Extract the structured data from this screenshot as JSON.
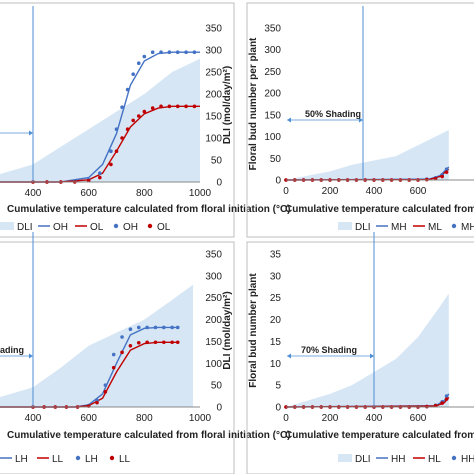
{
  "colors": {
    "dli_fill": "#d6e6f5",
    "high": "#4472c4",
    "low": "#c00000",
    "annotation": "#4f8fd4",
    "frame": "#bfbfbf",
    "axis": "#888888"
  },
  "chart_data": [
    {
      "type": "line",
      "panel": "top-left",
      "xlabel": "Cumulative temperature calculated from floral initiation (°C)",
      "ylabel": "",
      "y2label": "DLI (mol/day/m²)",
      "xticks": [
        "400",
        "600",
        "800",
        "1000"
      ],
      "yticks_left": [],
      "yticks_right": [
        "0",
        "50",
        "100",
        "150",
        "200",
        "250",
        "300",
        "350"
      ],
      "xlim": [
        240,
        1000
      ],
      "ylim": [
        0,
        350
      ],
      "annotation": {
        "text": "",
        "x": 400
      },
      "legend": [
        "DLI",
        "OH",
        "OL",
        "OH",
        "OL"
      ],
      "dli_area": {
        "x": [
          240,
          400,
          500,
          600,
          700,
          800,
          900,
          1000
        ],
        "y": [
          10,
          40,
          80,
          120,
          160,
          200,
          250,
          280
        ]
      },
      "series": [
        {
          "name": "OH",
          "role": "fit-high",
          "x": [
            240,
            500,
            600,
            650,
            700,
            750,
            800,
            850,
            900,
            1000
          ],
          "y": [
            0,
            0,
            10,
            40,
            110,
            220,
            275,
            292,
            295,
            295
          ]
        },
        {
          "name": "OL",
          "role": "fit-low",
          "x": [
            240,
            500,
            600,
            650,
            700,
            750,
            800,
            850,
            900,
            1000
          ],
          "y": [
            0,
            0,
            5,
            20,
            70,
            125,
            155,
            168,
            172,
            172
          ]
        },
        {
          "name": "OH",
          "role": "obs-high",
          "x": [
            400,
            450,
            500,
            550,
            600,
            640,
            680,
            700,
            720,
            740,
            760,
            780,
            800,
            830,
            860,
            890,
            920,
            950,
            980
          ],
          "y": [
            0,
            0,
            0,
            2,
            5,
            20,
            70,
            120,
            170,
            210,
            245,
            270,
            285,
            295,
            295,
            295,
            295,
            295,
            295
          ]
        },
        {
          "name": "OL",
          "role": "obs-low",
          "x": [
            400,
            450,
            500,
            550,
            600,
            640,
            680,
            700,
            720,
            740,
            760,
            780,
            800,
            830,
            860,
            890,
            920,
            950,
            980
          ],
          "y": [
            0,
            0,
            0,
            0,
            3,
            10,
            40,
            70,
            100,
            120,
            140,
            150,
            160,
            168,
            172,
            172,
            172,
            172,
            172
          ]
        }
      ]
    },
    {
      "type": "line",
      "panel": "top-right",
      "xlabel": "Cumulative temperature calculated from fl",
      "ylabel": "Floral bud number  per plant",
      "y2label": "",
      "xticks": [
        "0",
        "200",
        "400",
        "600"
      ],
      "yticks_left": [
        "0",
        "50",
        "100",
        "150",
        "200",
        "250",
        "300",
        "350"
      ],
      "yticks_right": [],
      "xlim": [
        0,
        740
      ],
      "ylim": [
        0,
        350
      ],
      "annotation": {
        "text": "50% Shading",
        "x": 350
      },
      "legend": [
        "DLI",
        "MH",
        "ML",
        "MH"
      ],
      "dli_area": {
        "x": [
          0,
          100,
          200,
          300,
          400,
          500,
          600,
          700,
          740
        ],
        "y": [
          0,
          10,
          20,
          35,
          45,
          55,
          80,
          105,
          115
        ]
      },
      "series": [
        {
          "name": "MH",
          "role": "fit-high",
          "x": [
            0,
            650,
            700,
            740
          ],
          "y": [
            0,
            2,
            10,
            30
          ]
        },
        {
          "name": "ML",
          "role": "fit-low",
          "x": [
            0,
            650,
            700,
            740
          ],
          "y": [
            0,
            1,
            8,
            25
          ]
        },
        {
          "name": "MH",
          "role": "obs-high",
          "x": [
            0,
            40,
            80,
            120,
            160,
            200,
            240,
            280,
            320,
            360,
            400,
            440,
            480,
            520,
            560,
            600,
            640,
            680,
            710,
            730
          ],
          "y": [
            0,
            0,
            0,
            0,
            0,
            0,
            0,
            0,
            0,
            0,
            0,
            0,
            0,
            0,
            0,
            0,
            2,
            5,
            12,
            25
          ]
        },
        {
          "name": "ML",
          "role": "obs-low",
          "x": [
            0,
            40,
            80,
            120,
            160,
            200,
            240,
            280,
            320,
            360,
            400,
            440,
            480,
            520,
            560,
            600,
            640,
            680,
            710,
            730
          ],
          "y": [
            0,
            0,
            0,
            0,
            0,
            0,
            0,
            0,
            0,
            0,
            0,
            0,
            0,
            0,
            0,
            0,
            1,
            3,
            8,
            18
          ]
        }
      ]
    },
    {
      "type": "line",
      "panel": "bottom-left",
      "xlabel": "Cumulative temperature calculated from floral initiation (°C)",
      "ylabel": "",
      "y2label": "DLI (mol/day/m²)",
      "xticks": [
        "400",
        "600",
        "800",
        "1000"
      ],
      "yticks_left": [],
      "yticks_right": [
        "0",
        "50",
        "100",
        "150",
        "200",
        "250",
        "300",
        "350"
      ],
      "xlim": [
        240,
        1000
      ],
      "ylim": [
        0,
        350
      ],
      "annotation": {
        "text": "ading",
        "x": 400
      },
      "legend": [
        "LH",
        "LL",
        "LH",
        "LL"
      ],
      "dli_area": {
        "x": [
          240,
          400,
          500,
          600,
          700,
          800,
          900,
          975
        ],
        "y": [
          15,
          45,
          90,
          140,
          170,
          200,
          245,
          280
        ]
      },
      "series": [
        {
          "name": "LH",
          "role": "fit-high",
          "x": [
            240,
            550,
            600,
            650,
            700,
            750,
            800,
            850,
            920
          ],
          "y": [
            0,
            0,
            5,
            30,
            100,
            165,
            180,
            182,
            182
          ]
        },
        {
          "name": "LL",
          "role": "fit-low",
          "x": [
            240,
            550,
            600,
            650,
            700,
            750,
            800,
            850,
            920
          ],
          "y": [
            0,
            0,
            3,
            20,
            80,
            130,
            145,
            148,
            148
          ]
        },
        {
          "name": "LH",
          "role": "obs-high",
          "x": [
            400,
            440,
            480,
            520,
            560,
            600,
            630,
            660,
            690,
            720,
            750,
            780,
            810,
            840,
            870,
            900,
            920
          ],
          "y": [
            0,
            0,
            0,
            0,
            0,
            3,
            15,
            50,
            120,
            160,
            178,
            182,
            182,
            182,
            182,
            182,
            182
          ]
        },
        {
          "name": "LL",
          "role": "obs-low",
          "x": [
            400,
            440,
            480,
            520,
            560,
            600,
            630,
            660,
            690,
            720,
            750,
            780,
            810,
            840,
            870,
            900,
            920
          ],
          "y": [
            0,
            0,
            0,
            0,
            0,
            2,
            10,
            35,
            90,
            125,
            140,
            147,
            148,
            148,
            148,
            148,
            148
          ]
        }
      ]
    },
    {
      "type": "line",
      "panel": "bottom-right",
      "xlabel": "Cumulative temperature calculated from fl",
      "ylabel": "Floral bud number  plant",
      "y2label": "",
      "xticks": [
        "0",
        "200",
        "400",
        "600"
      ],
      "yticks_left": [
        "0",
        "5",
        "10",
        "15",
        "20",
        "25",
        "30",
        "35"
      ],
      "yticks_right": [],
      "xlim": [
        0,
        740
      ],
      "ylim": [
        0,
        35
      ],
      "annotation": {
        "text": "70% Shading",
        "x": 400
      },
      "legend": [
        "DLI",
        "HH",
        "HL",
        "HH"
      ],
      "dli_area": {
        "x": [
          0,
          100,
          200,
          300,
          400,
          500,
          600,
          700,
          740
        ],
        "y": [
          0,
          1.5,
          3,
          5,
          8,
          11,
          16,
          23,
          26
        ]
      },
      "series": [
        {
          "name": "HH",
          "role": "fit-high",
          "x": [
            0,
            680,
            720,
            740
          ],
          "y": [
            0,
            0.3,
            1.5,
            3
          ]
        },
        {
          "name": "HL",
          "role": "fit-low",
          "x": [
            0,
            680,
            720,
            740
          ],
          "y": [
            0,
            0.2,
            1,
            2.2
          ]
        },
        {
          "name": "HH",
          "role": "obs-high",
          "x": [
            0,
            40,
            80,
            120,
            160,
            200,
            240,
            280,
            320,
            360,
            400,
            440,
            480,
            520,
            560,
            600,
            640,
            680,
            710,
            730
          ],
          "y": [
            0,
            0,
            0,
            0,
            0,
            0,
            0,
            0,
            0,
            0,
            0,
            0,
            0,
            0,
            0,
            0,
            0.1,
            0.4,
            1.2,
            2.5
          ]
        },
        {
          "name": "HL",
          "role": "obs-low",
          "x": [
            0,
            40,
            80,
            120,
            160,
            200,
            240,
            280,
            320,
            360,
            400,
            440,
            480,
            520,
            560,
            600,
            640,
            680,
            710,
            730
          ],
          "y": [
            0,
            0,
            0,
            0,
            0,
            0,
            0,
            0,
            0,
            0,
            0,
            0,
            0,
            0,
            0,
            0,
            0.1,
            0.3,
            0.9,
            1.8
          ]
        }
      ]
    }
  ]
}
